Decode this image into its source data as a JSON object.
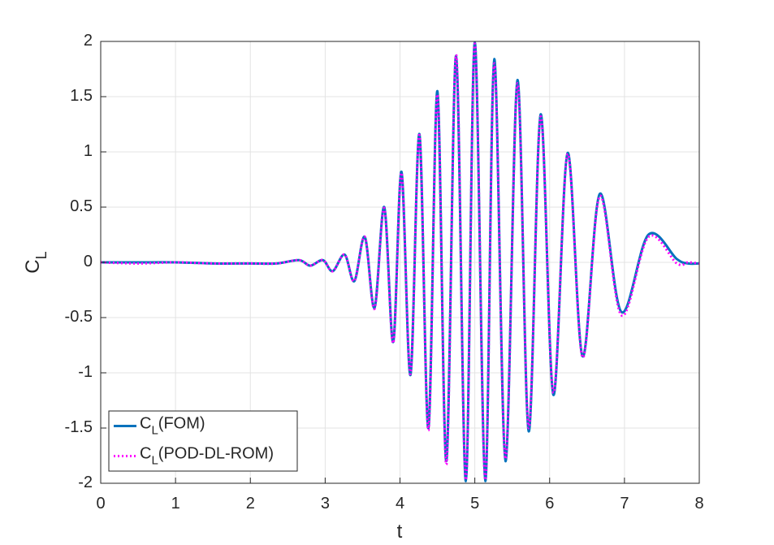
{
  "chart_data": {
    "type": "line",
    "xlabel": "t",
    "ylabel": "C_L",
    "x": [
      0,
      0.5,
      1,
      1.5,
      2,
      2.35,
      2.65,
      2.8,
      2.97,
      3.1,
      3.26,
      3.39,
      3.53,
      3.66,
      3.79,
      3.91,
      4.02,
      4.14,
      4.26,
      4.38,
      4.5,
      4.62,
      4.75,
      4.88,
      5,
      5.14,
      5.26,
      5.41,
      5.57,
      5.72,
      5.88,
      6.05,
      6.24,
      6.44,
      6.67,
      6.96,
      7.32,
      7.7,
      7.85,
      8
    ],
    "series": [
      {
        "name": "C_L(FOM)",
        "color": "#0072bd",
        "linestyle": "solid",
        "values": [
          0,
          0,
          0,
          -0.01,
          -0.01,
          -0.01,
          0.02,
          -0.03,
          0.02,
          -0.08,
          0.07,
          -0.17,
          0.23,
          -0.41,
          0.5,
          -0.72,
          0.82,
          -1.02,
          1.16,
          -1.5,
          1.55,
          -1.8,
          1.87,
          -1.98,
          1.99,
          -1.98,
          1.84,
          -1.8,
          1.65,
          -1.53,
          1.34,
          -1.2,
          0.99,
          -0.85,
          0.62,
          -0.45,
          0.25,
          0.03,
          -0.01,
          -0.01
        ]
      },
      {
        "name": "C_L(POD-DL-ROM)",
        "color": "#ff00ff",
        "linestyle": "dotted",
        "values": [
          0,
          -0.01,
          0,
          -0.01,
          -0.01,
          -0.01,
          0.02,
          -0.03,
          0.02,
          -0.08,
          0.07,
          -0.17,
          0.23,
          -0.42,
          0.49,
          -0.73,
          0.81,
          -1.01,
          1.15,
          -1.52,
          1.52,
          -1.83,
          1.88,
          -1.97,
          1.98,
          -1.97,
          1.8,
          -1.78,
          1.62,
          -1.5,
          1.32,
          -1.18,
          0.98,
          -0.86,
          0.6,
          -0.48,
          0.23,
          -0.01,
          0,
          -0.01
        ]
      }
    ],
    "xlim": [
      0,
      8
    ],
    "xticks": [
      0,
      1,
      2,
      3,
      4,
      5,
      6,
      7,
      8
    ],
    "ylim": [
      -2,
      2
    ],
    "yticks": [
      -2,
      -1.5,
      -1,
      -0.5,
      0,
      0.5,
      1,
      1.5,
      2
    ],
    "grid": true,
    "legend": "southwest"
  }
}
